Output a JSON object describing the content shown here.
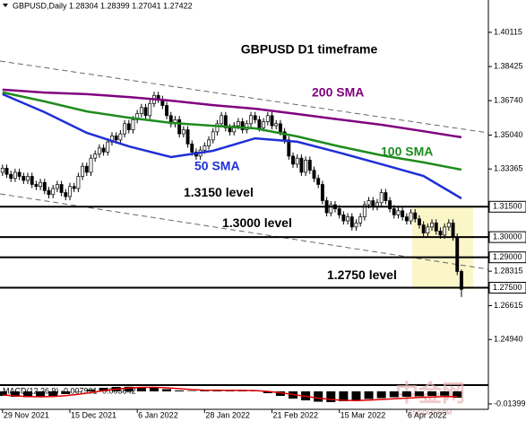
{
  "chart_data": {
    "type": "candlestick",
    "header": "GBPUSD,Daily  1.28304 1.28399 1.27041 1.27422",
    "title": "GBPUSD D1 timeframe",
    "ylim": [
      1.22734,
      1.41711
    ],
    "yticks": [
      1.40115,
      1.38425,
      {
        "value": 1.3674,
        "label": "1.36740"
      },
      {
        "value": 1.3504,
        "label": "1.35040"
      },
      1.33365,
      1.28315,
      1.26615,
      {
        "value": 1.2494,
        "label": "1.24940"
      }
    ],
    "xlim": [
      -0.6,
      115.4
    ],
    "xticks": [
      {
        "value": 0,
        "label": "29 Nov 2021"
      },
      {
        "value": 16,
        "label": "15 Dec 2021"
      },
      {
        "value": 32,
        "label": "6 Jan 2022"
      },
      {
        "value": 48,
        "label": "28 Jan 2022"
      },
      {
        "value": 64,
        "label": "21 Feb 2022"
      },
      {
        "value": 80,
        "label": "15 Mar 2022"
      },
      {
        "value": 96,
        "label": "6 Apr 2022"
      }
    ],
    "bull_color": "#ffffff",
    "bear_color": "#000000",
    "candles": [
      [
        1.332,
        1.3358,
        1.3302,
        1.334
      ],
      [
        1.334,
        1.3358,
        1.3292,
        1.331
      ],
      [
        1.331,
        1.3328,
        1.3272,
        1.329
      ],
      [
        1.329,
        1.3338,
        1.3272,
        1.332
      ],
      [
        1.332,
        1.3338,
        1.3282,
        1.33
      ],
      [
        1.33,
        1.3318,
        1.3262,
        1.328
      ],
      [
        1.328,
        1.3318,
        1.3262,
        1.33
      ],
      [
        1.33,
        1.3318,
        1.3242,
        1.326
      ],
      [
        1.326,
        1.3278,
        1.3232,
        1.325
      ],
      [
        1.325,
        1.3288,
        1.3232,
        1.327
      ],
      [
        1.327,
        1.3288,
        1.3212,
        1.323
      ],
      [
        1.323,
        1.3248,
        1.3192,
        1.321
      ],
      [
        1.321,
        1.3258,
        1.3192,
        1.324
      ],
      [
        1.324,
        1.3278,
        1.3222,
        1.326
      ],
      [
        1.326,
        1.3278,
        1.3202,
        1.322
      ],
      [
        1.322,
        1.3238,
        1.3182,
        1.32
      ],
      [
        1.32,
        1.3268,
        1.3182,
        1.325
      ],
      [
        1.325,
        1.3268,
        1.3222,
        1.324
      ],
      [
        1.324,
        1.3318,
        1.3222,
        1.33
      ],
      [
        1.33,
        1.3368,
        1.3282,
        1.335
      ],
      [
        1.335,
        1.3368,
        1.3302,
        1.332
      ],
      [
        1.332,
        1.3408,
        1.3302,
        1.339
      ],
      [
        1.339,
        1.3428,
        1.3372,
        1.341
      ],
      [
        1.341,
        1.3458,
        1.3392,
        1.344
      ],
      [
        1.344,
        1.3458,
        1.3402,
        1.342
      ],
      [
        1.342,
        1.3488,
        1.3402,
        1.347
      ],
      [
        1.347,
        1.3518,
        1.3452,
        1.35
      ],
      [
        1.35,
        1.3518,
        1.3462,
        1.348
      ],
      [
        1.348,
        1.3528,
        1.3462,
        1.351
      ],
      [
        1.351,
        1.3578,
        1.3492,
        1.356
      ],
      [
        1.356,
        1.3578,
        1.3512,
        1.353
      ],
      [
        1.353,
        1.3598,
        1.3512,
        1.358
      ],
      [
        1.358,
        1.3628,
        1.3562,
        1.361
      ],
      [
        1.361,
        1.3658,
        1.3592,
        1.364
      ],
      [
        1.364,
        1.3658,
        1.3582,
        1.36
      ],
      [
        1.36,
        1.3678,
        1.3582,
        1.366
      ],
      [
        1.366,
        1.3718,
        1.3642,
        1.37
      ],
      [
        1.37,
        1.3718,
        1.3662,
        1.368
      ],
      [
        1.368,
        1.3698,
        1.3632,
        1.365
      ],
      [
        1.365,
        1.3668,
        1.3582,
        1.36
      ],
      [
        1.36,
        1.3618,
        1.3542,
        1.356
      ],
      [
        1.356,
        1.3598,
        1.3542,
        1.358
      ],
      [
        1.358,
        1.3598,
        1.3492,
        1.351
      ],
      [
        1.351,
        1.3548,
        1.3492,
        1.353
      ],
      [
        1.353,
        1.3548,
        1.3442,
        1.346
      ],
      [
        1.346,
        1.3478,
        1.3402,
        1.342
      ],
      [
        1.342,
        1.3438,
        1.3382,
        1.34
      ],
      [
        1.34,
        1.3448,
        1.3382,
        1.343
      ],
      [
        1.343,
        1.3468,
        1.3412,
        1.345
      ],
      [
        1.345,
        1.3498,
        1.3432,
        1.348
      ],
      [
        1.348,
        1.3538,
        1.3462,
        1.352
      ],
      [
        1.352,
        1.3578,
        1.3502,
        1.356
      ],
      [
        1.356,
        1.3618,
        1.3542,
        1.36
      ],
      [
        1.36,
        1.3618,
        1.3522,
        1.354
      ],
      [
        1.354,
        1.3558,
        1.3502,
        1.352
      ],
      [
        1.352,
        1.3568,
        1.3502,
        1.355
      ],
      [
        1.355,
        1.3588,
        1.3532,
        1.357
      ],
      [
        1.357,
        1.3588,
        1.3512,
        1.353
      ],
      [
        1.353,
        1.3578,
        1.3512,
        1.356
      ],
      [
        1.356,
        1.3618,
        1.3542,
        1.36
      ],
      [
        1.36,
        1.3618,
        1.3562,
        1.358
      ],
      [
        1.358,
        1.3598,
        1.3522,
        1.354
      ],
      [
        1.354,
        1.3588,
        1.3522,
        1.357
      ],
      [
        1.357,
        1.3618,
        1.3552,
        1.36
      ],
      [
        1.36,
        1.3618,
        1.3532,
        1.355
      ],
      [
        1.355,
        1.3578,
        1.3532,
        1.356
      ],
      [
        1.356,
        1.3578,
        1.3502,
        1.352
      ],
      [
        1.352,
        1.3538,
        1.3462,
        1.348
      ],
      [
        1.348,
        1.3498,
        1.3382,
        1.34
      ],
      [
        1.34,
        1.3418,
        1.3342,
        1.336
      ],
      [
        1.336,
        1.3408,
        1.3342,
        1.339
      ],
      [
        1.339,
        1.3408,
        1.3302,
        1.332
      ],
      [
        1.332,
        1.3398,
        1.3302,
        1.338
      ],
      [
        1.338,
        1.3398,
        1.3312,
        1.333
      ],
      [
        1.333,
        1.3348,
        1.3272,
        1.329
      ],
      [
        1.329,
        1.3308,
        1.3242,
        1.326
      ],
      [
        1.326,
        1.3278,
        1.3162,
        1.318
      ],
      [
        1.318,
        1.3198,
        1.3102,
        1.312
      ],
      [
        1.312,
        1.3178,
        1.3102,
        1.316
      ],
      [
        1.316,
        1.3178,
        1.3122,
        1.314
      ],
      [
        1.314,
        1.3158,
        1.3092,
        1.311
      ],
      [
        1.311,
        1.3128,
        1.3062,
        1.308
      ],
      [
        1.308,
        1.3118,
        1.3062,
        1.31
      ],
      [
        1.31,
        1.3118,
        1.3032,
        1.305
      ],
      [
        1.305,
        1.3088,
        1.3032,
        1.307
      ],
      [
        1.307,
        1.3118,
        1.3052,
        1.31
      ],
      [
        1.31,
        1.3178,
        1.3082,
        1.316
      ],
      [
        1.316,
        1.3198,
        1.3142,
        1.318
      ],
      [
        1.318,
        1.3198,
        1.3132,
        1.315
      ],
      [
        1.315,
        1.3188,
        1.3132,
        1.317
      ],
      [
        1.317,
        1.3238,
        1.3152,
        1.322
      ],
      [
        1.322,
        1.3238,
        1.3162,
        1.318
      ],
      [
        1.318,
        1.3198,
        1.3122,
        1.314
      ],
      [
        1.314,
        1.3158,
        1.3092,
        1.311
      ],
      [
        1.311,
        1.3148,
        1.3092,
        1.313
      ],
      [
        1.313,
        1.3148,
        1.3082,
        1.31
      ],
      [
        1.31,
        1.3118,
        1.3062,
        1.308
      ],
      [
        1.308,
        1.3138,
        1.3062,
        1.312
      ],
      [
        1.312,
        1.3138,
        1.3072,
        1.309
      ],
      [
        1.309,
        1.3108,
        1.3042,
        1.306
      ],
      [
        1.306,
        1.3078,
        1.3002,
        1.302
      ],
      [
        1.302,
        1.3068,
        1.3002,
        1.305
      ],
      [
        1.305,
        1.3088,
        1.3032,
        1.307
      ],
      [
        1.307,
        1.3088,
        1.3012,
        1.303
      ],
      [
        1.303,
        1.3048,
        1.2992,
        1.301
      ],
      [
        1.301,
        1.3068,
        1.2992,
        1.305
      ],
      [
        1.305,
        1.3088,
        1.3032,
        1.307
      ],
      [
        1.307,
        1.3088,
        1.2982,
        1.3
      ],
      [
        1.3,
        1.3018,
        1.2812,
        1.283
      ],
      [
        1.28304,
        1.28399,
        1.27041,
        1.27422
      ]
    ],
    "series": [
      {
        "name": "200 SMA",
        "color": "#800080",
        "x": [
          0,
          10,
          20,
          30,
          40,
          50,
          60,
          70,
          80,
          90,
          100,
          109
        ],
        "values": [
          1.3728,
          1.3714,
          1.3706,
          1.3692,
          1.3674,
          1.3652,
          1.3634,
          1.3608,
          1.3581,
          1.3555,
          1.3523,
          1.3493
        ]
      },
      {
        "name": "100 SMA",
        "color": "#1e8c1e",
        "x": [
          0,
          10,
          20,
          30,
          40,
          50,
          60,
          70,
          80,
          90,
          100,
          109
        ],
        "values": [
          1.3715,
          1.367,
          1.3621,
          1.359,
          1.3564,
          1.355,
          1.3537,
          1.3497,
          1.3448,
          1.3404,
          1.3369,
          1.3333
        ]
      },
      {
        "name": "50 SMA",
        "color": "#1f2fd6",
        "x": [
          0,
          10,
          20,
          30,
          40,
          50,
          60,
          70,
          80,
          90,
          100,
          109
        ],
        "values": [
          1.3706,
          1.3617,
          1.3515,
          1.3448,
          1.3395,
          1.3426,
          1.3488,
          1.3471,
          1.3417,
          1.336,
          1.3302,
          1.3191
        ]
      }
    ],
    "levels": [
      {
        "value": 1.315,
        "label": "1.31500",
        "text": "1.3150 level"
      },
      {
        "value": 1.3,
        "label": "1.30000",
        "text": "1.3000 level"
      },
      {
        "value": 1.29,
        "label": "1.29000"
      },
      {
        "value": 1.275,
        "label": "1.27500",
        "text": "1.2750 level"
      }
    ],
    "macd": {
      "label": "MACD(12,26,9) -0.007931 -0.005642",
      "ylim": [
        -0.02,
        0.006
      ],
      "yticks": [
        -0.013992
      ],
      "x": [
        0,
        3,
        6,
        9,
        12,
        15,
        18,
        21,
        24,
        27,
        30,
        33,
        36,
        39,
        42,
        45,
        48,
        51,
        54,
        57,
        60,
        63,
        66,
        69,
        72,
        75,
        78,
        81,
        84,
        87,
        90,
        93,
        96,
        99,
        102,
        105,
        108
      ],
      "histogram": [
        -0.005,
        -0.006,
        -0.0065,
        -0.006,
        -0.005,
        -0.003,
        -0.0005,
        0.002,
        0.004,
        0.005,
        0.0052,
        0.005,
        0.004,
        0.0025,
        0.001,
        0.0005,
        0.0008,
        0.001,
        0.0012,
        0.001,
        0.0005,
        -0.002,
        -0.005,
        -0.008,
        -0.01,
        -0.0115,
        -0.012,
        -0.011,
        -0.0095,
        -0.0085,
        -0.0075,
        -0.0065,
        -0.006,
        -0.0055,
        -0.005,
        -0.0048,
        -0.007
      ],
      "signal": [
        -0.004,
        -0.005,
        -0.0058,
        -0.006,
        -0.0057,
        -0.0048,
        -0.0032,
        -0.0012,
        0.0008,
        0.0025,
        0.0038,
        0.0045,
        0.0045,
        0.004,
        0.003,
        0.002,
        0.0014,
        0.0012,
        0.0011,
        0.0011,
        0.0009,
        0,
        -0.0015,
        -0.0035,
        -0.0055,
        -0.0075,
        -0.009,
        -0.01,
        -0.0102,
        -0.0098,
        -0.009,
        -0.0082,
        -0.0075,
        -0.0068,
        -0.0062,
        -0.0058,
        -0.0057
      ],
      "hist_color": "#000000",
      "signal_color": "#e00000"
    },
    "watermark": "中金网",
    "watermark_sub": "CNGOLD.COM"
  }
}
